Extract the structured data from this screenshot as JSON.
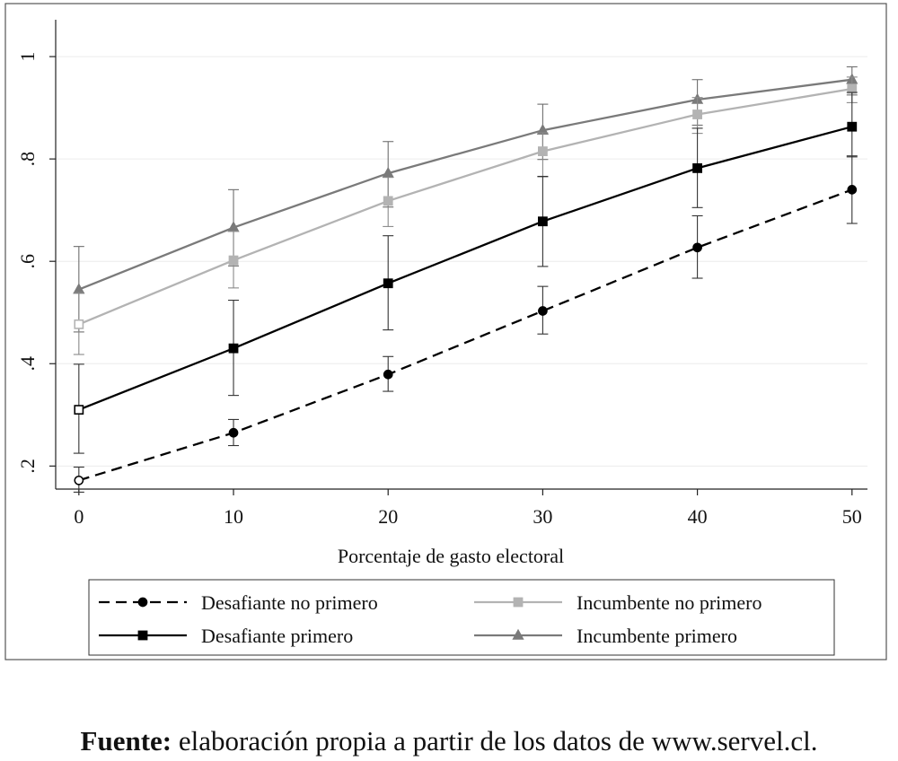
{
  "chart_data": {
    "type": "line",
    "xlabel": "Porcentaje de gasto electoral",
    "ylabel": "",
    "x": [
      0,
      10,
      20,
      30,
      40,
      50
    ],
    "xticks": [
      0,
      10,
      20,
      30,
      40,
      50
    ],
    "xtick_labels": [
      "0",
      "10",
      "20",
      "30",
      "40",
      "50"
    ],
    "yticks": [
      0.2,
      0.4,
      0.6,
      0.8,
      1.0
    ],
    "ytick_labels": [
      ".2",
      ".4",
      ".6",
      ".8",
      "1"
    ],
    "xlim": [
      -1.5,
      51
    ],
    "ylim": [
      0.155,
      1.072
    ],
    "grid": true,
    "legend_position": "bottom",
    "series": [
      {
        "name": "Desafiante no primero",
        "marker": "circle",
        "dash": true,
        "color": "#000000",
        "values": [
          0.172,
          0.265,
          0.379,
          0.503,
          0.627,
          0.74
        ],
        "ci_low": [
          0.149,
          0.24,
          0.346,
          0.458,
          0.567,
          0.674
        ],
        "ci_high": [
          0.198,
          0.291,
          0.414,
          0.551,
          0.689,
          0.806
        ]
      },
      {
        "name": "Desafiante primero",
        "marker": "square",
        "dash": false,
        "color": "#000000",
        "values": [
          0.31,
          0.43,
          0.557,
          0.678,
          0.782,
          0.863
        ],
        "ci_low": [
          0.225,
          0.338,
          0.466,
          0.59,
          0.705,
          0.804
        ],
        "ci_high": [
          0.399,
          0.524,
          0.65,
          0.766,
          0.86,
          0.93
        ]
      },
      {
        "name": "Incumbente no primero",
        "marker": "square",
        "dash": false,
        "color": "#b3b3b3",
        "values": [
          0.477,
          0.602,
          0.718,
          0.815,
          0.887,
          0.937
        ],
        "ci_low": [
          0.418,
          0.548,
          0.668,
          0.765,
          0.85,
          0.91
        ],
        "ci_high": [
          0.539,
          0.659,
          0.764,
          0.851,
          0.92,
          0.96
        ]
      },
      {
        "name": "Incumbente primero",
        "marker": "triangle",
        "dash": false,
        "color": "#7a7a7a",
        "values": [
          0.545,
          0.666,
          0.772,
          0.856,
          0.916,
          0.955
        ],
        "ci_low": [
          0.462,
          0.591,
          0.706,
          0.799,
          0.866,
          0.925
        ],
        "ci_high": [
          0.629,
          0.74,
          0.834,
          0.907,
          0.955,
          0.98
        ]
      }
    ],
    "source_label": "Fuente:",
    "source_text": " elaboración propia a partir de los datos de www.servel.cl."
  }
}
